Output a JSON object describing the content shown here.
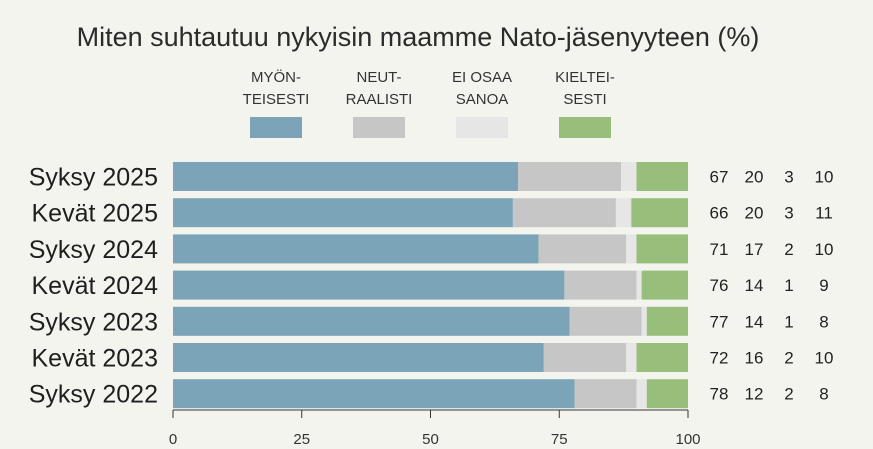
{
  "chart_data": {
    "type": "bar",
    "orientation": "horizontal",
    "stacked": true,
    "title": "Miten suhtautuu nykyisin maamme Nato-jäsenyyteen (%)",
    "categories": [
      "Syksy 2025",
      "Kevät 2025",
      "Syksy 2024",
      "Kevät 2024",
      "Syksy 2023",
      "Kevät 2023",
      "Syksy 2022"
    ],
    "series": [
      {
        "name": "MYÖN-TEISESTI",
        "legend_lines": [
          "MYÖN-",
          "TEISESTI"
        ],
        "color": "#7ba4b8",
        "values": [
          67,
          66,
          71,
          76,
          77,
          72,
          78
        ]
      },
      {
        "name": "NEUT-RAALISTI",
        "legend_lines": [
          "NEUT-",
          "RAALISTI"
        ],
        "color": "#c6c6c6",
        "values": [
          20,
          20,
          17,
          14,
          14,
          16,
          12
        ]
      },
      {
        "name": "EI OSAA SANOA",
        "legend_lines": [
          "EI OSAA",
          "SANOA"
        ],
        "color": "#e6e6e6",
        "values": [
          3,
          3,
          2,
          1,
          1,
          2,
          2
        ]
      },
      {
        "name": "KIELTEI-SESTI",
        "legend_lines": [
          "KIELTEI-",
          "SESTI"
        ],
        "color": "#97bf7b",
        "values": [
          10,
          11,
          10,
          9,
          8,
          10,
          8
        ]
      }
    ],
    "xlim": [
      0,
      100
    ],
    "xticks": [
      0,
      25,
      50,
      75,
      100
    ],
    "xlabel": "",
    "ylabel": "",
    "legend_position": "top",
    "value_labels_position": "right"
  }
}
